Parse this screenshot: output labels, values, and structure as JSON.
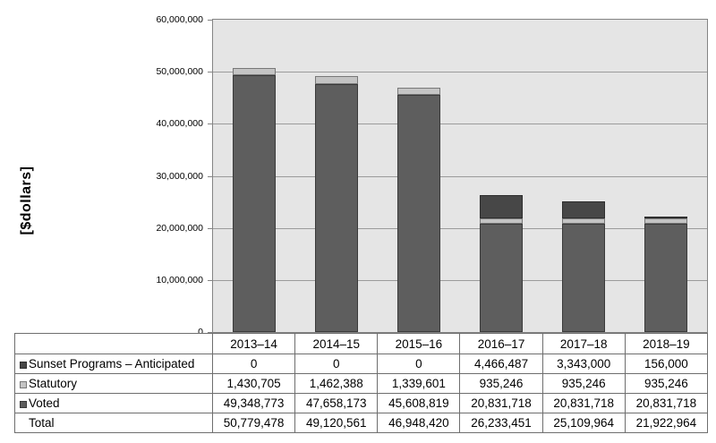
{
  "chart_data": {
    "type": "bar",
    "stacked": true,
    "title": "",
    "xlabel": "",
    "ylabel": "[$dollars]",
    "categories": [
      "2013–14",
      "2014–15",
      "2015–16",
      "2016–17",
      "2017–18",
      "2018–19"
    ],
    "series": [
      {
        "name": "Voted",
        "color": "#5E5E5E",
        "border_color": "#3A3A3A",
        "values": [
          49348773,
          47658173,
          45608819,
          20831718,
          20831718,
          20831718
        ]
      },
      {
        "name": "Statutory",
        "color": "#C4C4C4",
        "border_color": "#787878",
        "values": [
          1430705,
          1462388,
          1339601,
          935246,
          935246,
          935246
        ]
      },
      {
        "name": "Sunset Programs – Anticipated",
        "color": "#474747",
        "border_color": "#2E2E2E",
        "values": [
          0,
          0,
          0,
          4466487,
          3343000,
          156000
        ]
      }
    ],
    "totals": [
      50779478,
      49120561,
      46948420,
      26233451,
      25109964,
      21922964
    ],
    "ylim": [
      0,
      60000000
    ],
    "ytick_values": [
      0,
      10000000,
      20000000,
      30000000,
      40000000,
      50000000,
      60000000
    ],
    "ytick_labels": [
      "0",
      "10,000,000",
      "20,000,000",
      "30,000,000",
      "40,000,000",
      "50,000,000",
      "60,000,000"
    ],
    "grid": true,
    "legend_position": "table-rows-below-chart"
  },
  "table": {
    "columns": [
      "2013–14",
      "2014–15",
      "2015–16",
      "2016–17",
      "2017–18",
      "2018–19"
    ],
    "rows": [
      {
        "label": "Sunset Programs – Anticipated",
        "marker_color": "#474747",
        "marker_border": "#2E2E2E",
        "values": [
          "0",
          "0",
          "0",
          "4,466,487",
          "3,343,000",
          "156,000"
        ]
      },
      {
        "label": "Statutory",
        "marker_color": "#C4C4C4",
        "marker_border": "#787878",
        "values": [
          "1,430,705",
          "1,462,388",
          "1,339,601",
          "935,246",
          "935,246",
          "935,246"
        ]
      },
      {
        "label": "Voted",
        "marker_color": "#5E5E5E",
        "marker_border": "#3A3A3A",
        "values": [
          "49,348,773",
          "47,658,173",
          "45,608,819",
          "20,831,718",
          "20,831,718",
          "20,831,718"
        ]
      },
      {
        "label": "Total",
        "marker_color": null,
        "marker_border": null,
        "values": [
          "50,779,478",
          "49,120,561",
          "46,948,420",
          "26,233,451",
          "25,109,964",
          "21,922,964"
        ]
      }
    ]
  },
  "colors": {
    "plot_background": "#E5E5E5",
    "gridline": "#9B9B9B",
    "plot_border": "#848484",
    "table_border": "#6E6E6E",
    "text": "#000000",
    "page_background": "#FFFFFF"
  }
}
